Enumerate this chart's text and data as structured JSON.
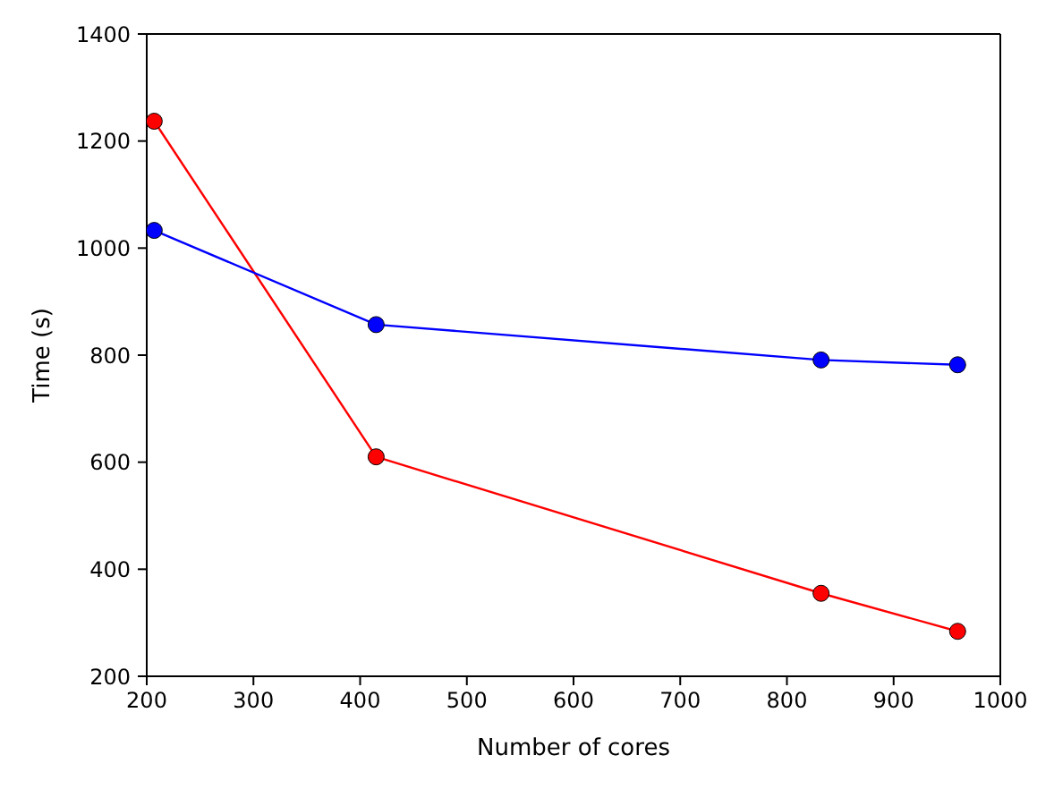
{
  "chart_data": {
    "type": "line",
    "xlabel": "Number of cores",
    "ylabel": "Time (s)",
    "x": [
      207,
      415,
      832,
      960
    ],
    "series": [
      {
        "color": "#ff0000",
        "values": [
          1237,
          610,
          355,
          284
        ]
      },
      {
        "color": "#0000ff",
        "values": [
          1033,
          857,
          791,
          782
        ]
      }
    ],
    "xlim": [
      200,
      1000
    ],
    "xticks": [
      200,
      300,
      400,
      500,
      600,
      700,
      800,
      900,
      1000
    ],
    "ylim": [
      200,
      1400
    ],
    "yticks": [
      200,
      400,
      600,
      800,
      1000,
      1200,
      1400
    ],
    "marker": "circle",
    "line_style": "solid",
    "grid": false
  }
}
